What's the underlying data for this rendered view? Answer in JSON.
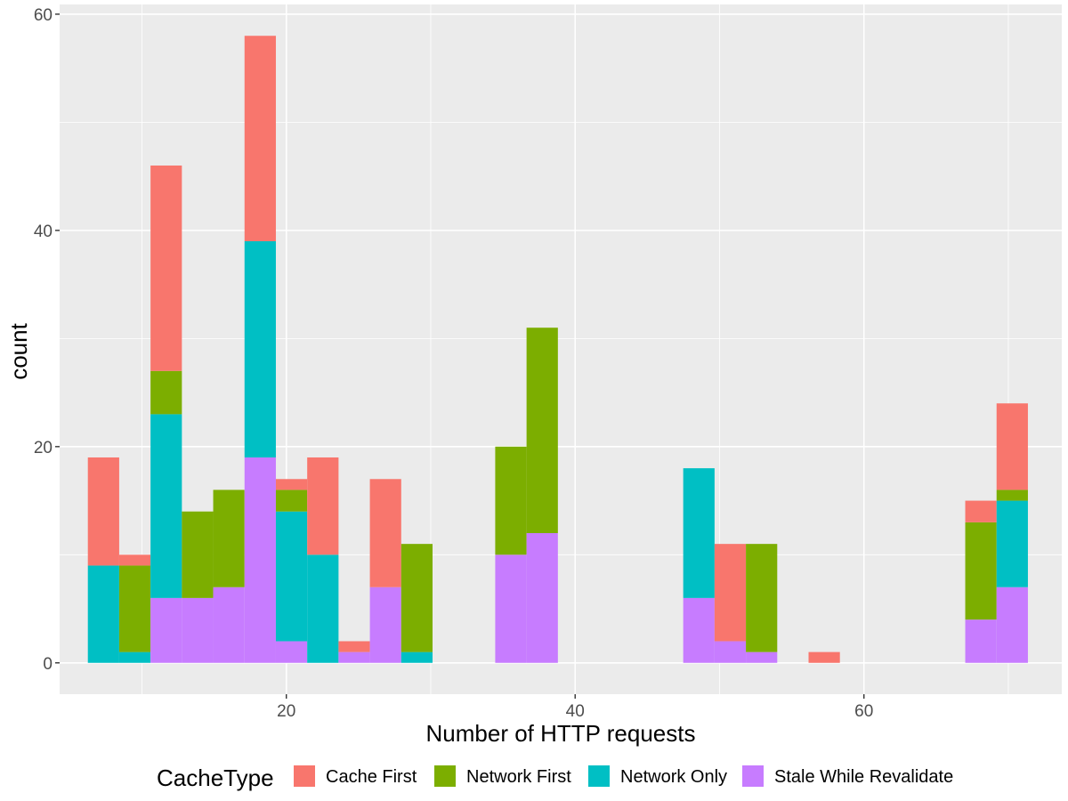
{
  "chart_data": {
    "type": "bar",
    "stacked": true,
    "xlabel": "Number of HTTP requests",
    "ylabel": "count",
    "xlim": [
      4.3,
      73.7
    ],
    "ylim": [
      -2.9,
      60.9
    ],
    "x_ticks": [
      20,
      40,
      60
    ],
    "y_ticks": [
      0,
      20,
      40,
      60
    ],
    "x_tick_labels": [
      "20",
      "40",
      "60"
    ],
    "y_tick_labels": [
      "0",
      "20",
      "40",
      "60"
    ],
    "grid": true,
    "panel_background": "#ebebeb",
    "legend": {
      "title": "CacheType",
      "position": "bottom"
    },
    "bin_width": 2.17,
    "stack_order_bottom_to_top": [
      "Stale While Revalidate",
      "Network Only",
      "Network First",
      "Cache First"
    ],
    "series": [
      {
        "name": "Cache First",
        "color": "#F8766D",
        "bins": [
          {
            "x": 7.34,
            "count": 10
          },
          {
            "x": 9.51,
            "count": 1
          },
          {
            "x": 11.68,
            "count": 19
          },
          {
            "x": 18.19,
            "count": 19
          },
          {
            "x": 20.36,
            "count": 1
          },
          {
            "x": 22.53,
            "count": 9
          },
          {
            "x": 24.7,
            "count": 1
          },
          {
            "x": 26.87,
            "count": 10
          },
          {
            "x": 50.74,
            "count": 9
          },
          {
            "x": 57.25,
            "count": 1
          },
          {
            "x": 68.1,
            "count": 2
          },
          {
            "x": 70.27,
            "count": 8
          }
        ]
      },
      {
        "name": "Network First",
        "color": "#7CAE00",
        "bins": [
          {
            "x": 9.51,
            "count": 8
          },
          {
            "x": 11.68,
            "count": 4
          },
          {
            "x": 13.85,
            "count": 8
          },
          {
            "x": 16.02,
            "count": 9
          },
          {
            "x": 20.36,
            "count": 2
          },
          {
            "x": 29.04,
            "count": 10
          },
          {
            "x": 35.55,
            "count": 10
          },
          {
            "x": 37.72,
            "count": 19
          },
          {
            "x": 52.91,
            "count": 10
          },
          {
            "x": 68.1,
            "count": 9
          },
          {
            "x": 70.27,
            "count": 1
          }
        ]
      },
      {
        "name": "Network Only",
        "color": "#00BFC4",
        "bins": [
          {
            "x": 7.34,
            "count": 9
          },
          {
            "x": 9.51,
            "count": 1
          },
          {
            "x": 11.68,
            "count": 17
          },
          {
            "x": 18.19,
            "count": 20
          },
          {
            "x": 20.36,
            "count": 12
          },
          {
            "x": 22.53,
            "count": 10
          },
          {
            "x": 29.04,
            "count": 1
          },
          {
            "x": 48.57,
            "count": 12
          },
          {
            "x": 70.27,
            "count": 8
          }
        ]
      },
      {
        "name": "Stale While Revalidate",
        "color": "#C77CFF",
        "bins": [
          {
            "x": 11.68,
            "count": 6
          },
          {
            "x": 13.85,
            "count": 6
          },
          {
            "x": 16.02,
            "count": 7
          },
          {
            "x": 18.19,
            "count": 19
          },
          {
            "x": 20.36,
            "count": 2
          },
          {
            "x": 24.7,
            "count": 1
          },
          {
            "x": 26.87,
            "count": 7
          },
          {
            "x": 35.55,
            "count": 10
          },
          {
            "x": 37.72,
            "count": 12
          },
          {
            "x": 48.57,
            "count": 6
          },
          {
            "x": 50.74,
            "count": 2
          },
          {
            "x": 52.91,
            "count": 1
          },
          {
            "x": 68.1,
            "count": 4
          },
          {
            "x": 70.27,
            "count": 7
          }
        ]
      }
    ]
  }
}
